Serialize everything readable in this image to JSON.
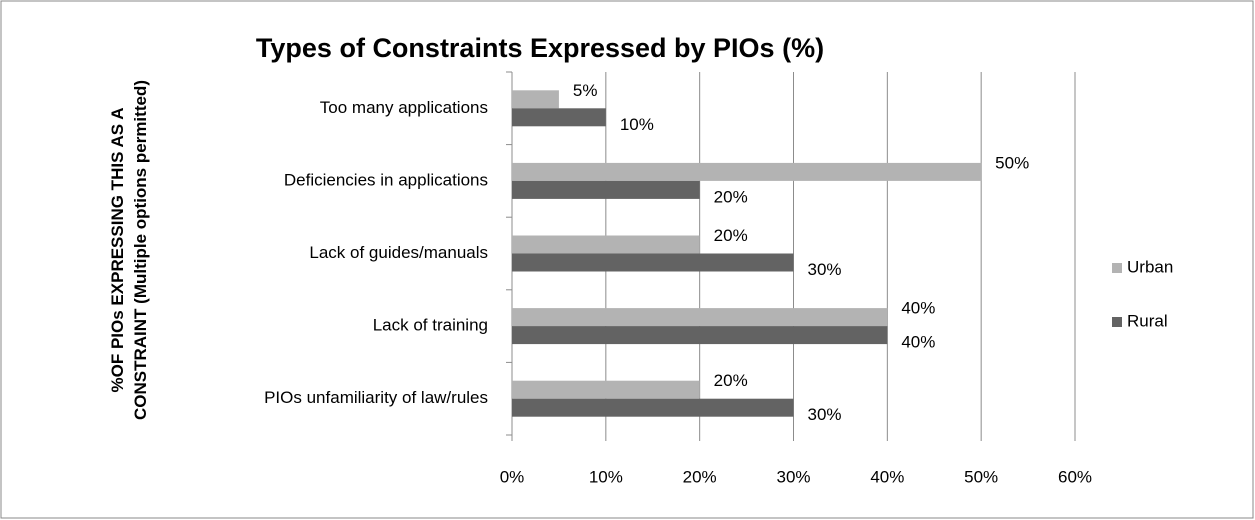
{
  "chart_data": {
    "type": "bar",
    "orientation": "horizontal",
    "title": "Types of Constraints Expressed by PIOs (%)",
    "y_label": "%OF PIOs EXPRESSING THIS AS A CONSTRAINT (Multiple options permitted)",
    "categories": [
      "Too many applications",
      "Deficiencies in applications",
      "Lack of guides/manuals",
      "Lack of training",
      "PIOs unfamiliarity of law/rules"
    ],
    "series": [
      {
        "name": "Urban",
        "color": "#b3b3b3",
        "values": [
          5,
          50,
          20,
          40,
          20
        ],
        "value_labels": [
          "5%",
          "50%",
          "20%",
          "40%",
          "20%"
        ]
      },
      {
        "name": "Rural",
        "color": "#636363",
        "values": [
          10,
          20,
          30,
          40,
          30
        ],
        "value_labels": [
          "10%",
          "20%",
          "30%",
          "40%",
          "30%"
        ]
      }
    ],
    "xlim": [
      0,
      60
    ],
    "xticks": [
      {
        "value": 0,
        "label": "0%"
      },
      {
        "value": 10,
        "label": "10%"
      },
      {
        "value": 20,
        "label": "20%"
      },
      {
        "value": 30,
        "label": "30%"
      },
      {
        "value": 40,
        "label": "40%"
      },
      {
        "value": 50,
        "label": "50%"
      },
      {
        "value": 60,
        "label": "60%"
      }
    ],
    "grid": true,
    "legend": "right"
  }
}
